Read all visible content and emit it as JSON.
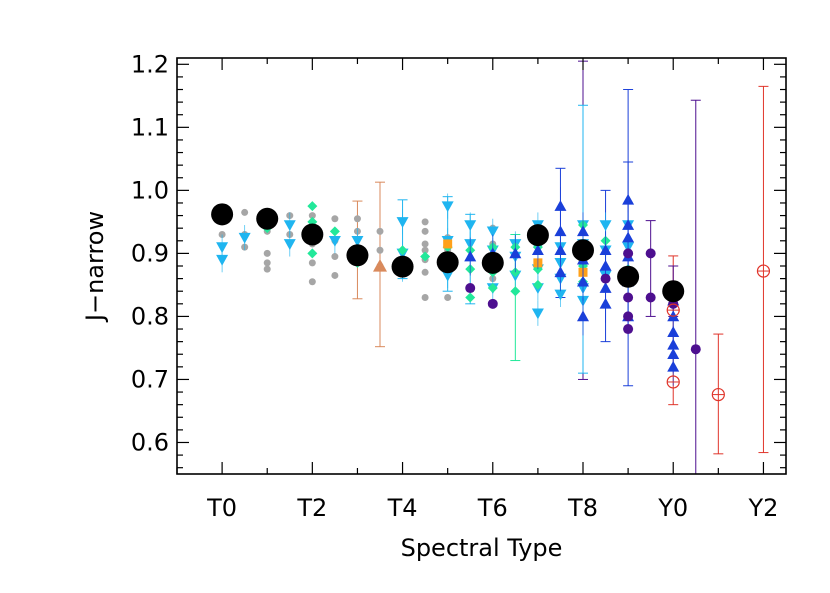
{
  "chart_data": {
    "type": "scatter",
    "title": "",
    "xlabel": "Spectral Type",
    "ylabel": "J−narrow",
    "xlim": [
      -1,
      12.5
    ],
    "ylim": [
      0.55,
      1.21
    ],
    "x_ticks": [
      {
        "value": 0,
        "label": "T0"
      },
      {
        "value": 2,
        "label": "T2"
      },
      {
        "value": 4,
        "label": "T4"
      },
      {
        "value": 6,
        "label": "T6"
      },
      {
        "value": 8,
        "label": "T8"
      },
      {
        "value": 10,
        "label": "Y0"
      },
      {
        "value": 12,
        "label": "Y2"
      }
    ],
    "x_minor_ticks": [
      -1,
      1,
      3,
      5,
      7,
      9,
      11
    ],
    "y_ticks": [
      {
        "value": 0.6,
        "label": "0.6"
      },
      {
        "value": 0.7,
        "label": "0.7"
      },
      {
        "value": 0.8,
        "label": "0.8"
      },
      {
        "value": 0.9,
        "label": "0.9"
      },
      {
        "value": 1.0,
        "label": "1.0"
      },
      {
        "value": 1.1,
        "label": "1.1"
      },
      {
        "value": 1.2,
        "label": "1.2"
      }
    ],
    "y_minor_step": 0.02,
    "grid": false,
    "colors": {
      "gray": "#a6a6a6",
      "cyan": "#1fb5f0",
      "green": "#22e89a",
      "orange": "#ffa11a",
      "brown": "#d98a5c",
      "blue": "#1a3fd9",
      "purple": "#4d0f8f",
      "red": "#e0342a",
      "black": "#000000"
    },
    "series": [
      {
        "marker": "circle-filled",
        "color": "gray",
        "size": 3.5,
        "points": [
          [
            0,
            0.95
          ],
          [
            0,
            0.93
          ],
          [
            0.5,
            0.965
          ],
          [
            0.5,
            0.93
          ],
          [
            0.5,
            0.91
          ],
          [
            1,
            0.935
          ],
          [
            1,
            0.9
          ],
          [
            1,
            0.885
          ],
          [
            1,
            0.875
          ],
          [
            1.5,
            0.96
          ],
          [
            1.5,
            0.93
          ],
          [
            2,
            0.96
          ],
          [
            2,
            0.945
          ],
          [
            2,
            0.915
          ],
          [
            2,
            0.885
          ],
          [
            2,
            0.855
          ],
          [
            2.5,
            0.955
          ],
          [
            2.5,
            0.92
          ],
          [
            2.5,
            0.895
          ],
          [
            2.5,
            0.865
          ],
          [
            3,
            0.955
          ],
          [
            3,
            0.935
          ],
          [
            3,
            0.9
          ],
          [
            3.5,
            0.935
          ],
          [
            3.5,
            0.905
          ],
          [
            3.5,
            0.88
          ],
          [
            4.5,
            0.95
          ],
          [
            4.5,
            0.935
          ],
          [
            4.5,
            0.915
          ],
          [
            4.5,
            0.905
          ],
          [
            4.5,
            0.89
          ],
          [
            4.5,
            0.87
          ],
          [
            4.5,
            0.83
          ],
          [
            5,
            0.925
          ],
          [
            5,
            0.905
          ],
          [
            5,
            0.87
          ],
          [
            5,
            0.83
          ],
          [
            6,
            0.94
          ],
          [
            6,
            0.915
          ],
          [
            6,
            0.885
          ],
          [
            6,
            0.86
          ],
          [
            6,
            0.845
          ]
        ]
      },
      {
        "marker": "triangle-down",
        "color": "cyan",
        "size": 6,
        "err": 0.02,
        "points": [
          [
            0,
            0.91
          ],
          [
            0,
            0.89
          ],
          [
            0.5,
            0.925
          ],
          [
            1.5,
            0.945
          ],
          [
            1.5,
            0.915
          ],
          [
            2.5,
            0.92
          ],
          [
            3,
            0.92
          ],
          [
            4,
            0.95
          ],
          [
            4,
            0.9
          ],
          [
            4,
            0.875
          ],
          [
            5,
            0.975
          ],
          [
            5,
            0.92
          ],
          [
            5,
            0.89
          ],
          [
            5,
            0.865
          ],
          [
            5.5,
            0.945
          ],
          [
            5.5,
            0.915
          ],
          [
            6,
            0.935
          ],
          [
            6,
            0.905
          ],
          [
            6,
            0.875
          ],
          [
            6,
            0.845
          ],
          [
            6.5,
            0.915
          ],
          [
            6.5,
            0.895
          ],
          [
            6.5,
            0.865
          ],
          [
            7,
            0.945
          ],
          [
            7,
            0.91
          ],
          [
            7,
            0.875
          ],
          [
            7,
            0.845
          ],
          [
            7,
            0.805
          ],
          [
            7.5,
            0.91
          ],
          [
            7.5,
            0.885
          ],
          [
            7.5,
            0.86
          ],
          [
            7.5,
            0.835
          ],
          [
            8,
            0.945
          ],
          [
            8,
            0.915
          ],
          [
            8,
            0.885
          ],
          [
            8,
            0.845
          ],
          [
            8,
            0.825
          ],
          [
            8.5,
            0.945
          ],
          [
            8.5,
            0.905
          ],
          [
            8.5,
            0.865
          ],
          [
            9,
            0.945
          ],
          [
            9,
            0.91
          ],
          [
            9,
            0.86
          ]
        ]
      },
      {
        "marker": "diamond",
        "color": "green",
        "size": 5,
        "points": [
          [
            0,
            0.955
          ],
          [
            1,
            0.94
          ],
          [
            2,
            0.975
          ],
          [
            2,
            0.95
          ],
          [
            2,
            0.9
          ],
          [
            2.5,
            0.935
          ],
          [
            3,
            0.905
          ],
          [
            3,
            0.885
          ],
          [
            4,
            0.905
          ],
          [
            4.5,
            0.895
          ],
          [
            5,
            0.91
          ],
          [
            5,
            0.88
          ],
          [
            5.5,
            0.905
          ],
          [
            5.5,
            0.875
          ],
          [
            5.5,
            0.83
          ],
          [
            6,
            0.91
          ],
          [
            6,
            0.87
          ],
          [
            6,
            0.845
          ],
          [
            6.5,
            0.91
          ],
          [
            6.5,
            0.87
          ],
          [
            6.5,
            0.84
          ],
          [
            7,
            0.91
          ],
          [
            7,
            0.875
          ],
          [
            7,
            0.85
          ],
          [
            8,
            0.945
          ],
          [
            8,
            0.91
          ],
          [
            8,
            0.88
          ],
          [
            8,
            0.855
          ],
          [
            8.5,
            0.92
          ],
          [
            9,
            0.9
          ],
          [
            9,
            0.875
          ]
        ]
      },
      {
        "marker": "square",
        "color": "orange",
        "size": 9,
        "points": [
          [
            5,
            0.915
          ],
          [
            7,
            0.885
          ],
          [
            8,
            0.895
          ],
          [
            8,
            0.87
          ]
        ]
      },
      {
        "marker": "triangle-up",
        "color": "brown",
        "size": 7,
        "points": [
          [
            3.5,
            0.88
          ]
        ]
      },
      {
        "marker": "triangle-up",
        "color": "blue",
        "size": 6,
        "err": 0.03,
        "points": [
          [
            5.5,
            0.895
          ],
          [
            6,
            0.9
          ],
          [
            6.5,
            0.9
          ],
          [
            7,
            0.905
          ],
          [
            7.5,
            0.975
          ],
          [
            7.5,
            0.935
          ],
          [
            7.5,
            0.905
          ],
          [
            7.5,
            0.87
          ],
          [
            8,
            0.935
          ],
          [
            8,
            0.89
          ],
          [
            8,
            0.855
          ],
          [
            8,
            0.8
          ],
          [
            8.5,
            0.905
          ],
          [
            8.5,
            0.88
          ],
          [
            8.5,
            0.845
          ],
          [
            8.5,
            0.82
          ],
          [
            9,
            0.985
          ],
          [
            9,
            0.945
          ],
          [
            9,
            0.925
          ],
          [
            9,
            0.895
          ],
          [
            9,
            0.855
          ],
          [
            9,
            0.8
          ],
          [
            10,
            0.825
          ],
          [
            10,
            0.8
          ],
          [
            10,
            0.775
          ],
          [
            10,
            0.755
          ],
          [
            10,
            0.74
          ],
          [
            10,
            0.72
          ]
        ]
      },
      {
        "marker": "circle-filled",
        "color": "purple",
        "size": 5,
        "points": [
          [
            5.5,
            0.845
          ],
          [
            6,
            0.82
          ],
          [
            8.5,
            0.86
          ],
          [
            9,
            0.9
          ],
          [
            9,
            0.86
          ],
          [
            9,
            0.83
          ],
          [
            9,
            0.8
          ],
          [
            9,
            0.78
          ],
          [
            9.5,
            0.9
          ],
          [
            9.5,
            0.83
          ],
          [
            10,
            0.835
          ],
          [
            10,
            0.82
          ],
          [
            10.5,
            0.748
          ]
        ]
      },
      {
        "marker": "circle-open",
        "color": "red",
        "size": 6,
        "points": [
          [
            10,
            0.81
          ],
          [
            10,
            0.696
          ],
          [
            11,
            0.676
          ],
          [
            12,
            0.872
          ]
        ]
      },
      {
        "marker": "circle-filled",
        "color": "black",
        "size": 11,
        "points": [
          [
            0,
            0.962
          ],
          [
            1,
            0.955
          ],
          [
            2,
            0.93
          ],
          [
            3,
            0.897
          ],
          [
            4,
            0.879
          ],
          [
            5,
            0.886
          ],
          [
            6,
            0.885
          ],
          [
            7,
            0.929
          ],
          [
            8,
            0.905
          ],
          [
            9,
            0.863
          ],
          [
            10,
            0.84
          ]
        ]
      }
    ],
    "error_bars": [
      {
        "x": 3,
        "low": 0.828,
        "high": 0.983,
        "color": "brown"
      },
      {
        "x": 3.5,
        "low": 0.752,
        "high": 1.013,
        "color": "brown"
      },
      {
        "x": 4,
        "low": 0.86,
        "high": 0.985,
        "color": "cyan"
      },
      {
        "x": 5,
        "low": 0.84,
        "high": 0.99,
        "color": "cyan"
      },
      {
        "x": 5.5,
        "low": 0.82,
        "high": 0.962,
        "color": "cyan"
      },
      {
        "x": 6.5,
        "low": 0.73,
        "high": 0.93,
        "color": "green"
      },
      {
        "x": 7.5,
        "low": 0.83,
        "high": 1.035,
        "color": "blue"
      },
      {
        "x": 8,
        "low": 0.7,
        "high": 1.205,
        "color": "purple"
      },
      {
        "x": 8,
        "low": 0.71,
        "high": 1.135,
        "color": "cyan"
      },
      {
        "x": 8.5,
        "low": 0.76,
        "high": 1.0,
        "color": "blue"
      },
      {
        "x": 9,
        "low": 0.69,
        "high": 1.16,
        "color": "blue"
      },
      {
        "x": 9,
        "low": 0.78,
        "high": 1.045,
        "color": "blue"
      },
      {
        "x": 9.5,
        "low": 0.8,
        "high": 0.952,
        "color": "purple"
      },
      {
        "x": 10,
        "low": 0.66,
        "high": 0.896,
        "color": "red"
      },
      {
        "x": 10,
        "low": 0.8,
        "high": 0.88,
        "color": "purple"
      },
      {
        "x": 10.5,
        "low": 0.55,
        "high": 1.143,
        "color": "purple"
      },
      {
        "x": 11,
        "low": 0.582,
        "high": 0.772,
        "color": "red"
      },
      {
        "x": 12,
        "low": 0.584,
        "high": 1.165,
        "color": "red"
      }
    ]
  }
}
